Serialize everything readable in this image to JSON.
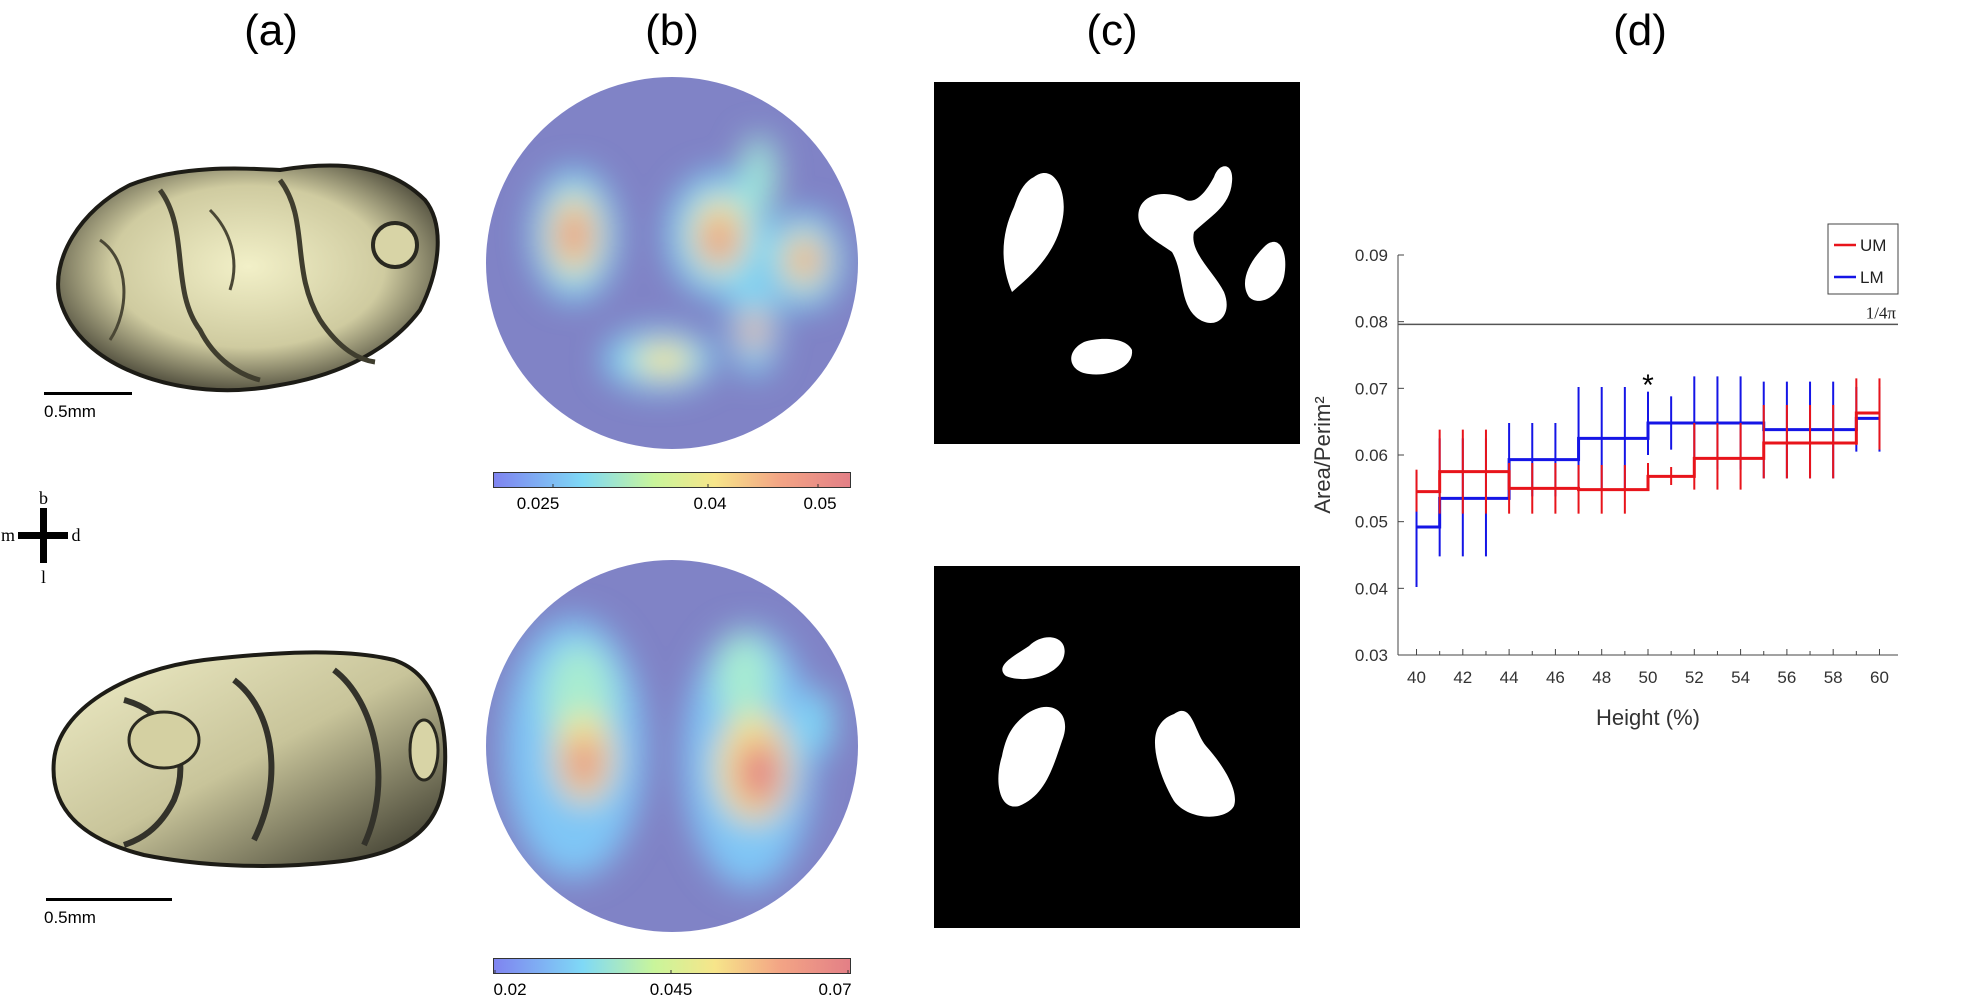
{
  "panel_labels": [
    "(a)",
    "(b)",
    "(c)",
    "(d)"
  ],
  "scale_label": "0.5mm",
  "compass": {
    "top": "b",
    "bottom": "l",
    "left": "m",
    "right": "d"
  },
  "colorbar_top": {
    "ticks": [
      "0.025",
      "0.04",
      "0.05"
    ]
  },
  "colorbar_bottom": {
    "ticks": [
      "0.02",
      "0.045",
      "0.07"
    ]
  },
  "colors": {
    "UM": "#e8141b",
    "LM": "#1515e6",
    "refline": "#555555",
    "cbar": [
      "#7f83f0",
      "#7fd9f6",
      "#c9f59b",
      "#f7e58a",
      "#f3a585",
      "#e37f86"
    ]
  },
  "chart_data": {
    "type": "line",
    "xlabel": "Height (%)",
    "ylabel": "Area/Perim²",
    "xlim": [
      39.2,
      60.8
    ],
    "ylim": [
      0.03,
      0.09
    ],
    "xticks": [
      40,
      42,
      44,
      46,
      48,
      50,
      52,
      54,
      56,
      58,
      60
    ],
    "yticks": [
      "0.03",
      "0.04",
      "0.05",
      "0.06",
      "0.07",
      "0.08",
      "0.09"
    ],
    "legend": {
      "placement": "top-right",
      "entries": [
        "UM",
        "LM"
      ]
    },
    "reference_line": {
      "y": 0.0796,
      "label": "1/4π"
    },
    "annotation": {
      "text": "*",
      "x": 50
    },
    "x": [
      40,
      41,
      42,
      43,
      44,
      45,
      46,
      47,
      48,
      49,
      50,
      51,
      52,
      53,
      54,
      55,
      56,
      57,
      58,
      59,
      60
    ],
    "series": [
      {
        "name": "UM",
        "values": [
          0.0545,
          0.0575,
          0.0575,
          0.0575,
          0.055,
          0.055,
          0.055,
          0.0548,
          0.0548,
          0.0548,
          0.0568,
          0.0568,
          0.0595,
          0.0595,
          0.0595,
          0.0618,
          0.0618,
          0.0618,
          0.0618,
          0.0663,
          0.0663
        ],
        "lower": [
          0.0515,
          0.0512,
          0.0512,
          0.0512,
          0.0512,
          0.0512,
          0.0512,
          0.0512,
          0.0512,
          0.0512,
          0.055,
          0.0555,
          0.0548,
          0.0548,
          0.0548,
          0.0565,
          0.0565,
          0.0565,
          0.0565,
          0.0615,
          0.0608
        ],
        "upper": [
          0.0578,
          0.0638,
          0.0638,
          0.0638,
          0.0588,
          0.0588,
          0.0588,
          0.0585,
          0.0585,
          0.0585,
          0.0588,
          0.0582,
          0.0648,
          0.0648,
          0.0648,
          0.0675,
          0.0675,
          0.0675,
          0.0675,
          0.0715,
          0.0715
        ]
      },
      {
        "name": "LM",
        "values": [
          0.0492,
          0.0535,
          0.0535,
          0.0535,
          0.0593,
          0.0593,
          0.0593,
          0.0625,
          0.0625,
          0.0625,
          0.0648,
          0.0648,
          0.0648,
          0.0648,
          0.0648,
          0.0638,
          0.0638,
          0.0638,
          0.0638,
          0.0655,
          0.0655
        ],
        "lower": [
          0.0402,
          0.0448,
          0.0448,
          0.0448,
          0.0538,
          0.0538,
          0.0538,
          0.0548,
          0.0548,
          0.0548,
          0.06,
          0.0608,
          0.0578,
          0.0578,
          0.0578,
          0.0565,
          0.0565,
          0.0565,
          0.0565,
          0.0605,
          0.0605
        ],
        "upper": [
          0.0575,
          0.0625,
          0.0625,
          0.0625,
          0.0648,
          0.0648,
          0.0648,
          0.0702,
          0.0702,
          0.0702,
          0.0695,
          0.0688,
          0.0718,
          0.0718,
          0.0718,
          0.071,
          0.071,
          0.071,
          0.071,
          0.0702,
          0.0702
        ]
      }
    ]
  }
}
